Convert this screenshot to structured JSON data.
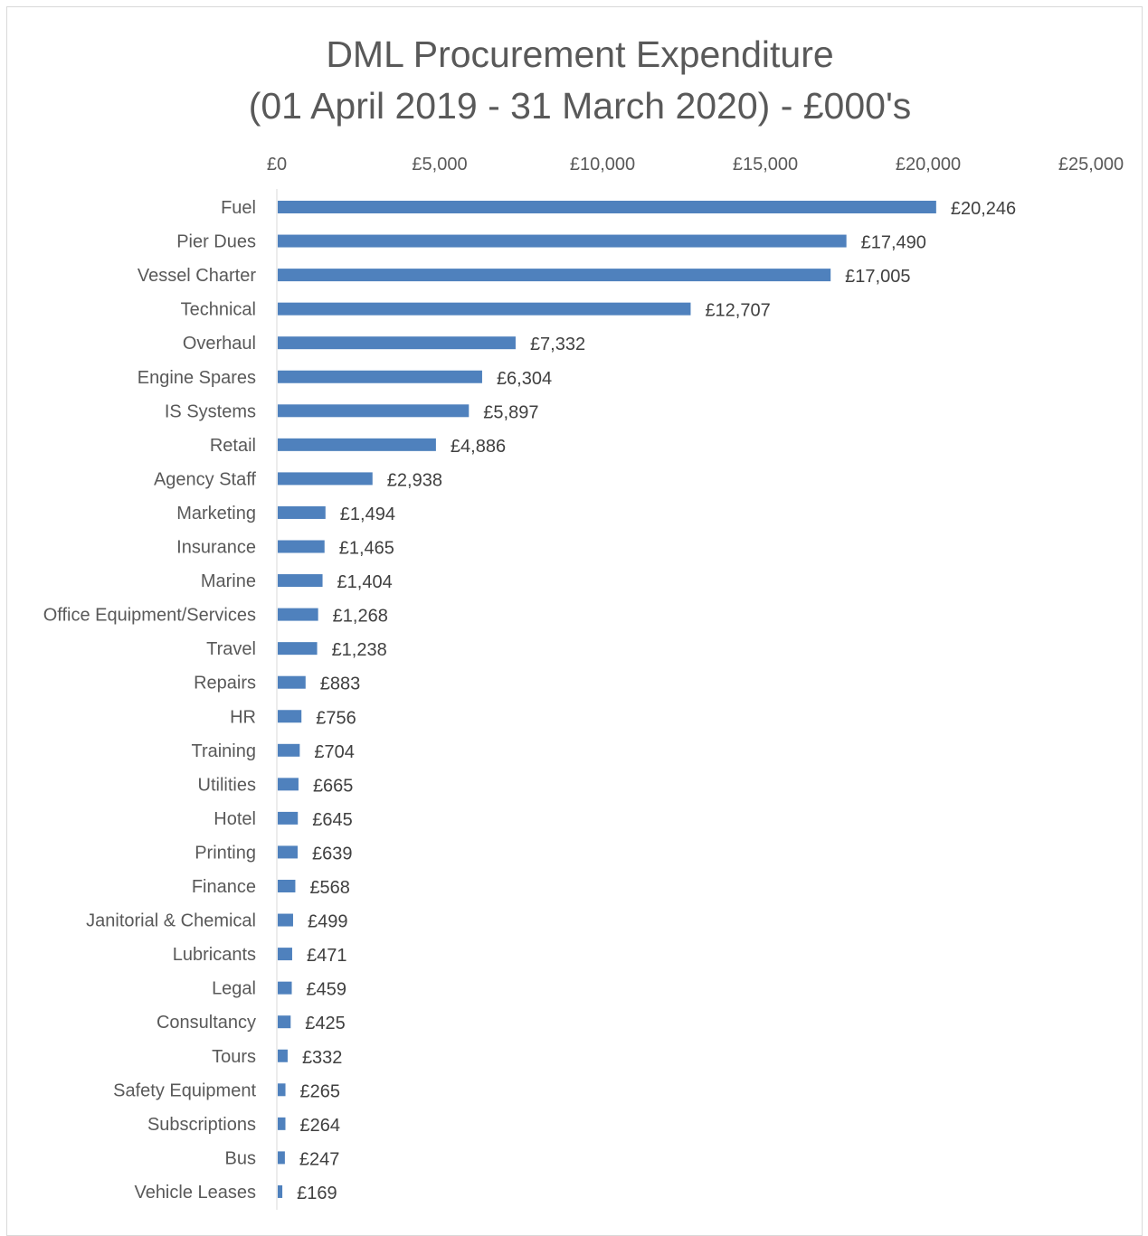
{
  "chart_data": {
    "type": "bar",
    "orientation": "horizontal",
    "title": "DML Procurement Expenditure",
    "subtitle": "(01 April 2019 - 31 March 2020) - £000's",
    "xlabel": "",
    "ylabel": "",
    "xlim": [
      0,
      25000
    ],
    "x_tick_labels": [
      "£0",
      "£5,000",
      "£10,000",
      "£15,000",
      "£20,000",
      "£25,000"
    ],
    "x_axis_position": "top",
    "grid": false,
    "legend": "none",
    "bar_color": "#4f81bd",
    "categories": [
      "Fuel",
      "Pier Dues",
      "Vessel Charter",
      "Technical",
      "Overhaul",
      "Engine Spares",
      "IS Systems",
      "Retail",
      "Agency Staff",
      "Marketing",
      "Insurance",
      "Marine",
      "Office Equipment/Services",
      "Travel",
      "Repairs",
      "HR",
      "Training",
      "Utilities",
      "Hotel",
      "Printing",
      "Finance",
      "Janitorial & Chemical",
      "Lubricants",
      "Legal",
      "Consultancy",
      "Tours",
      "Safety Equipment",
      "Subscriptions",
      "Bus",
      "Vehicle Leases"
    ],
    "values": [
      20246,
      17490,
      17005,
      12707,
      7332,
      6304,
      5897,
      4886,
      2938,
      1494,
      1465,
      1404,
      1268,
      1238,
      883,
      756,
      704,
      665,
      645,
      639,
      568,
      499,
      471,
      459,
      425,
      332,
      265,
      264,
      247,
      169
    ],
    "data_labels": [
      "£20,246",
      "£17,490",
      "£17,005",
      "£12,707",
      "£7,332",
      "£6,304",
      "£5,897",
      "£4,886",
      "£2,938",
      "£1,494",
      "£1,465",
      "£1,404",
      "£1,268",
      "£1,238",
      "£883",
      "£756",
      "£704",
      "£665",
      "£645",
      "£639",
      "£568",
      "£499",
      "£471",
      "£459",
      "£425",
      "£332",
      "£265",
      "£264",
      "£247",
      "£169"
    ]
  }
}
